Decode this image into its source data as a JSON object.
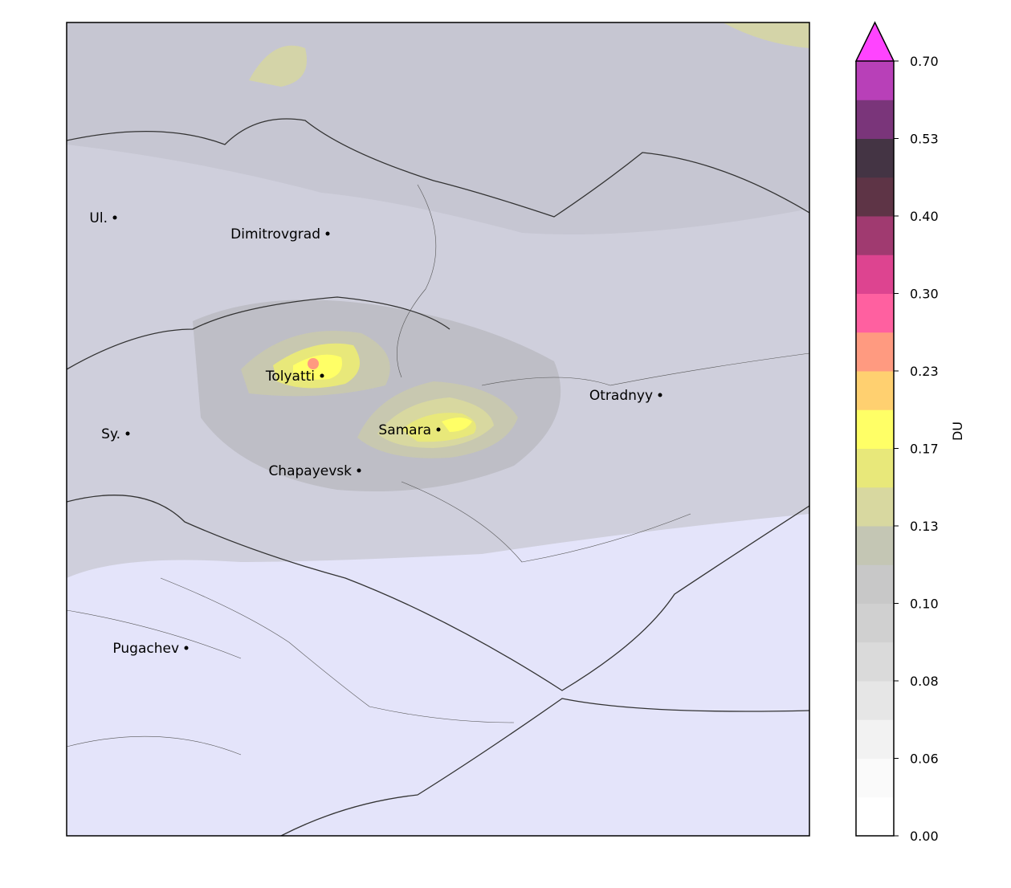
{
  "map": {
    "cities": [
      "Ul.",
      "Dimitrovgrad",
      "Tolyatti",
      "Samara",
      "Chapayevsk",
      "Otradnyy",
      "Sy.",
      "Pugachev"
    ],
    "colorbar": {
      "label": "DU",
      "ticks": [
        {
          "value": 0,
          "label": "0.00"
        },
        0.06,
        0.08,
        {
          "value": 0.1,
          "label": "0.10"
        },
        0.13,
        0.17,
        0.23,
        {
          "value": 0.3,
          "label": "0.30"
        },
        {
          "value": 0.4,
          "label": "0.40"
        },
        0.53,
        {
          "value": 0.7,
          "label": "0.70"
        }
      ],
      "colors": [
        "#ffffff",
        "#fafafa",
        "#f2f2f2",
        "#e6e6e6",
        "#dadada",
        "#d0d0d0",
        "#c8c8c8",
        "#c4c6b4",
        "#d8d8a0",
        "#e8e87a",
        "#ffff66",
        "#ffd070",
        "#ff9a80",
        "#ff60a0",
        "#dd4490",
        "#a03a70",
        "#5e3446",
        "#443444",
        "#7a357a",
        "#b840b8"
      ],
      "over_color": "#ff44ff"
    }
  }
}
